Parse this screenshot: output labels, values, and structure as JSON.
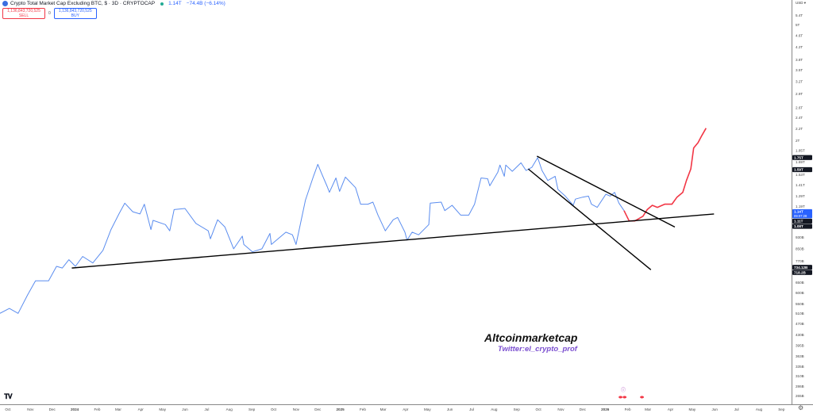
{
  "header": {
    "title": "Crypto Total Market Cap Excluding BTC, $ · 3D · CRYPTOCAP",
    "last": "1.14T",
    "change": "−74.4B (−6.14%)",
    "sell_price": "1,136,843,720,525",
    "sell_label": "SELL",
    "buy_price": "1,136,843,720,525",
    "buy_label": "BUY",
    "spread": "0"
  },
  "scale": {
    "currency": "USD ▾"
  },
  "watermark": {
    "title": "Altcoinmarketcap",
    "subtitle": "Twitter:el_crypto_prof"
  },
  "colors": {
    "price": "#5b8def",
    "projection": "#f23645",
    "trendline": "#000000",
    "current_label": "#2962ff"
  },
  "icons": {
    "logo": "tradingview-logo",
    "settings": "gear-icon",
    "events": [
      "lightning-icon",
      "us-flag-icon",
      "us-flag-icon"
    ]
  },
  "chart_data": {
    "type": "line",
    "title": "Crypto Total Market Cap Excluding BTC, $ · 3D · CRYPTOCAP",
    "y_scale": "log",
    "y_unit": "USD (T = trillion, B = billion)",
    "ylim": [
      0.26,
      5.6
    ],
    "xlim": [
      "2023-09-20",
      "2026-09-30"
    ],
    "grid": false,
    "x_ticks": [
      {
        "label": "Oct",
        "date": "2023-10-01"
      },
      {
        "label": "Nov",
        "date": "2023-11-01"
      },
      {
        "label": "Dec",
        "date": "2023-12-01"
      },
      {
        "label": "2024",
        "date": "2024-01-01"
      },
      {
        "label": "Feb",
        "date": "2024-02-01"
      },
      {
        "label": "Mar",
        "date": "2024-03-01"
      },
      {
        "label": "Apr",
        "date": "2024-04-01"
      },
      {
        "label": "May",
        "date": "2024-05-01"
      },
      {
        "label": "Jun",
        "date": "2024-06-01"
      },
      {
        "label": "Jul",
        "date": "2024-07-01"
      },
      {
        "label": "Aug",
        "date": "2024-08-01"
      },
      {
        "label": "Sep",
        "date": "2024-09-01"
      },
      {
        "label": "Oct",
        "date": "2024-10-01"
      },
      {
        "label": "Nov",
        "date": "2024-11-01"
      },
      {
        "label": "Dec",
        "date": "2024-12-01"
      },
      {
        "label": "2025",
        "date": "2025-01-01"
      },
      {
        "label": "Feb",
        "date": "2025-02-01"
      },
      {
        "label": "Mar",
        "date": "2025-03-01"
      },
      {
        "label": "Apr",
        "date": "2025-04-01"
      },
      {
        "label": "May",
        "date": "2025-05-01"
      },
      {
        "label": "Jun",
        "date": "2025-06-01"
      },
      {
        "label": "Jul",
        "date": "2025-07-01"
      },
      {
        "label": "Aug",
        "date": "2025-08-01"
      },
      {
        "label": "Sep",
        "date": "2025-09-01"
      },
      {
        "label": "Oct",
        "date": "2025-10-01"
      },
      {
        "label": "Nov",
        "date": "2025-11-01"
      },
      {
        "label": "Dec",
        "date": "2025-12-01"
      },
      {
        "label": "2026",
        "date": "2026-01-01"
      },
      {
        "label": "Feb",
        "date": "2026-02-01"
      },
      {
        "label": "Mar",
        "date": "2026-03-01"
      },
      {
        "label": "Apr",
        "date": "2026-04-01"
      },
      {
        "label": "May",
        "date": "2026-05-01"
      },
      {
        "label": "Jun",
        "date": "2026-06-01"
      },
      {
        "label": "Jul",
        "date": "2026-07-01"
      },
      {
        "label": "Aug",
        "date": "2026-08-01"
      },
      {
        "label": "Sep",
        "date": "2026-09-01"
      }
    ],
    "y_ticks": [
      {
        "label": "5.4T",
        "v": 5.4
      },
      {
        "label": "5T",
        "v": 5.0
      },
      {
        "label": "4.6T",
        "v": 4.6
      },
      {
        "label": "4.2T",
        "v": 4.2
      },
      {
        "label": "3.8T",
        "v": 3.8
      },
      {
        "label": "3.5T",
        "v": 3.5
      },
      {
        "label": "3.2T",
        "v": 3.2
      },
      {
        "label": "2.9T",
        "v": 2.9
      },
      {
        "label": "2.6T",
        "v": 2.6
      },
      {
        "label": "2.4T",
        "v": 2.4
      },
      {
        "label": "2.2T",
        "v": 2.2
      },
      {
        "label": "2T",
        "v": 2.0
      },
      {
        "label": "1.85T",
        "v": 1.85
      },
      {
        "label": "1.69T",
        "v": 1.69
      },
      {
        "label": "1.53T",
        "v": 1.53
      },
      {
        "label": "1.41T",
        "v": 1.41
      },
      {
        "label": "1.29T",
        "v": 1.29
      },
      {
        "label": "1.19T",
        "v": 1.19
      },
      {
        "label": "930B",
        "v": 0.93
      },
      {
        "label": "850B",
        "v": 0.85
      },
      {
        "label": "770B",
        "v": 0.77
      },
      {
        "label": "650B",
        "v": 0.65
      },
      {
        "label": "600B",
        "v": 0.6
      },
      {
        "label": "550B",
        "v": 0.55
      },
      {
        "label": "510B",
        "v": 0.51
      },
      {
        "label": "470B",
        "v": 0.47
      },
      {
        "label": "430B",
        "v": 0.43
      },
      {
        "label": "395B",
        "v": 0.395
      },
      {
        "label": "363B",
        "v": 0.363
      },
      {
        "label": "335B",
        "v": 0.335
      },
      {
        "label": "310B",
        "v": 0.31
      },
      {
        "label": "286B",
        "v": 0.286
      },
      {
        "label": "265B",
        "v": 0.265
      }
    ],
    "price_labels": [
      {
        "label": "1.75T",
        "v": 1.75,
        "style": "dark"
      },
      {
        "label": "1.59T",
        "v": 1.59,
        "style": "dark"
      },
      {
        "label": "1.14T",
        "sub": "09:07:28",
        "v": 1.14,
        "style": "current"
      },
      {
        "label": "1.11T",
        "v": 1.11,
        "style": "dark"
      },
      {
        "label": "1.08T",
        "v": 1.08,
        "style": "dark"
      },
      {
        "label": "734.12B",
        "v": 0.734,
        "style": "dark"
      },
      {
        "label": "718.2B",
        "v": 0.718,
        "style": "dark"
      }
    ],
    "series": [
      {
        "role": "price",
        "points": [
          [
            "2023-09-20",
            0.51
          ],
          [
            "2023-10-03",
            0.53
          ],
          [
            "2023-10-15",
            0.51
          ],
          [
            "2023-10-28",
            0.59
          ],
          [
            "2023-11-08",
            0.66
          ],
          [
            "2023-11-26",
            0.66
          ],
          [
            "2023-12-07",
            0.74
          ],
          [
            "2023-12-15",
            0.73
          ],
          [
            "2023-12-24",
            0.78
          ],
          [
            "2024-01-02",
            0.74
          ],
          [
            "2024-01-12",
            0.8
          ],
          [
            "2024-01-26",
            0.76
          ],
          [
            "2024-02-09",
            0.84
          ],
          [
            "2024-02-20",
            0.99
          ],
          [
            "2024-03-02",
            1.12
          ],
          [
            "2024-03-10",
            1.22
          ],
          [
            "2024-03-21",
            1.14
          ],
          [
            "2024-03-31",
            1.12
          ],
          [
            "2024-04-06",
            1.21
          ],
          [
            "2024-04-15",
            0.99
          ],
          [
            "2024-04-18",
            1.065
          ],
          [
            "2024-05-05",
            1.03
          ],
          [
            "2024-05-11",
            0.98
          ],
          [
            "2024-05-17",
            1.16
          ],
          [
            "2024-06-01",
            1.17
          ],
          [
            "2024-06-16",
            1.04
          ],
          [
            "2024-07-03",
            0.98
          ],
          [
            "2024-07-06",
            0.92
          ],
          [
            "2024-07-16",
            1.07
          ],
          [
            "2024-07-26",
            1.01
          ],
          [
            "2024-08-07",
            0.85
          ],
          [
            "2024-08-19",
            0.94
          ],
          [
            "2024-08-21",
            0.88
          ],
          [
            "2024-09-02",
            0.83
          ],
          [
            "2024-09-15",
            0.85
          ],
          [
            "2024-09-26",
            0.96
          ],
          [
            "2024-09-28",
            0.88
          ],
          [
            "2024-10-18",
            0.97
          ],
          [
            "2024-10-27",
            0.95
          ],
          [
            "2024-11-01",
            0.88
          ],
          [
            "2024-11-14",
            1.25
          ],
          [
            "2024-11-25",
            1.51
          ],
          [
            "2024-12-01",
            1.66
          ],
          [
            "2024-12-06",
            1.55
          ],
          [
            "2024-12-14",
            1.39
          ],
          [
            "2024-12-17",
            1.33
          ],
          [
            "2024-12-26",
            1.49
          ],
          [
            "2024-12-31",
            1.34
          ],
          [
            "2025-01-08",
            1.5
          ],
          [
            "2025-01-22",
            1.38
          ],
          [
            "2025-01-29",
            1.21
          ],
          [
            "2025-02-08",
            1.21
          ],
          [
            "2025-02-15",
            1.23
          ],
          [
            "2025-02-22",
            1.11
          ],
          [
            "2025-03-04",
            0.98
          ],
          [
            "2025-03-15",
            1.07
          ],
          [
            "2025-03-21",
            1.09
          ],
          [
            "2025-03-31",
            0.97
          ],
          [
            "2025-04-03",
            0.91
          ],
          [
            "2025-04-10",
            0.97
          ],
          [
            "2025-04-19",
            0.95
          ],
          [
            "2025-05-03",
            1.03
          ],
          [
            "2025-05-05",
            1.22
          ],
          [
            "2025-05-20",
            1.23
          ],
          [
            "2025-05-25",
            1.15
          ],
          [
            "2025-06-04",
            1.2
          ],
          [
            "2025-06-16",
            1.11
          ],
          [
            "2025-06-27",
            1.11
          ],
          [
            "2025-07-05",
            1.21
          ],
          [
            "2025-07-14",
            1.49
          ],
          [
            "2025-07-23",
            1.48
          ],
          [
            "2025-07-26",
            1.4
          ],
          [
            "2025-08-06",
            1.56
          ],
          [
            "2025-08-09",
            1.65
          ],
          [
            "2025-08-15",
            1.51
          ],
          [
            "2025-08-17",
            1.65
          ],
          [
            "2025-08-26",
            1.57
          ],
          [
            "2025-09-07",
            1.68
          ],
          [
            "2025-09-14",
            1.58
          ],
          [
            "2025-09-22",
            1.62
          ],
          [
            "2025-09-30",
            1.75
          ],
          [
            "2025-10-06",
            1.58
          ],
          [
            "2025-10-14",
            1.46
          ],
          [
            "2025-10-24",
            1.51
          ],
          [
            "2025-10-28",
            1.36
          ],
          [
            "2025-11-07",
            1.29
          ],
          [
            "2025-11-18",
            1.2
          ],
          [
            "2025-11-21",
            1.26
          ],
          [
            "2025-12-01",
            1.28
          ],
          [
            "2025-12-09",
            1.29
          ],
          [
            "2025-12-13",
            1.21
          ],
          [
            "2025-12-21",
            1.18
          ],
          [
            "2026-01-02",
            1.31
          ],
          [
            "2026-01-08",
            1.29
          ],
          [
            "2026-01-14",
            1.33
          ],
          [
            "2026-01-20",
            1.22
          ],
          [
            "2026-01-27",
            1.15
          ]
        ]
      },
      {
        "role": "projection",
        "points": [
          [
            "2026-01-27",
            1.15
          ],
          [
            "2026-02-03",
            1.06
          ],
          [
            "2026-02-11",
            1.06
          ],
          [
            "2026-02-22",
            1.1
          ],
          [
            "2026-02-28",
            1.16
          ],
          [
            "2026-03-07",
            1.2
          ],
          [
            "2026-03-14",
            1.18
          ],
          [
            "2026-03-24",
            1.21
          ],
          [
            "2026-04-03",
            1.21
          ],
          [
            "2026-04-10",
            1.28
          ],
          [
            "2026-04-18",
            1.33
          ],
          [
            "2026-04-23",
            1.46
          ],
          [
            "2026-04-29",
            1.6
          ],
          [
            "2026-05-03",
            1.89
          ],
          [
            "2026-05-09",
            1.97
          ],
          [
            "2026-05-14",
            2.08
          ],
          [
            "2026-05-20",
            2.21
          ]
        ]
      }
    ],
    "trendlines": [
      {
        "role": "support",
        "from": [
          "2023-12-28",
          0.73
        ],
        "to": [
          "2026-05-31",
          1.12
        ]
      },
      {
        "role": "upper-descending",
        "from": [
          "2025-09-29",
          1.77
        ],
        "to": [
          "2026-04-07",
          1.01
        ]
      },
      {
        "role": "lower-descending",
        "from": [
          "2025-09-17",
          1.6
        ],
        "to": [
          "2026-03-05",
          0.72
        ]
      }
    ]
  }
}
